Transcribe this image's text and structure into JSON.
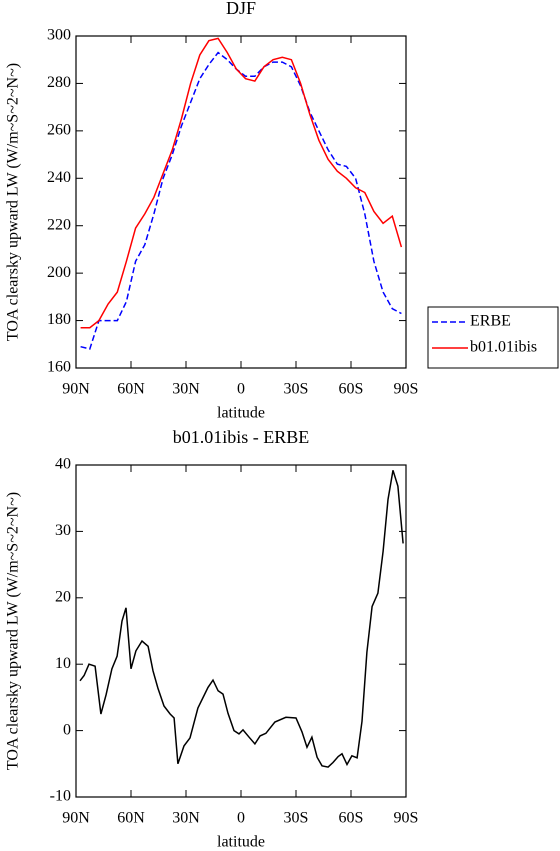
{
  "chart_data": [
    {
      "type": "line",
      "title": "DJF",
      "xlabel": "latitude",
      "ylabel": "TOA clearsky upward LW (W/m~S~2~N~)",
      "xlim": [
        90,
        -90
      ],
      "xticks": [
        {
          "value": 90,
          "label": "90N"
        },
        {
          "value": 60,
          "label": "60N"
        },
        {
          "value": 30,
          "label": "30N"
        },
        0,
        {
          "value": -30,
          "label": "30S"
        },
        {
          "value": -60,
          "label": "60S"
        },
        {
          "value": -90,
          "label": "90S"
        }
      ],
      "ylim": [
        160,
        300
      ],
      "yticks": [
        160,
        180,
        200,
        220,
        240,
        260,
        280,
        300
      ],
      "legend": "right",
      "x": [
        87.5,
        82.5,
        77.5,
        72.5,
        67.5,
        62.5,
        57.5,
        52.5,
        47.5,
        42.5,
        37.5,
        32.5,
        27.5,
        22.5,
        17.5,
        12.5,
        7.5,
        2.5,
        -2.5,
        -7.5,
        -12.5,
        -17.5,
        -22.5,
        -27.5,
        -32.5,
        -37.5,
        -42.5,
        -47.5,
        -52.5,
        -57.5,
        -62.5,
        -67.5,
        -72.5,
        -77.5,
        -82.5,
        -87.5
      ],
      "series": [
        {
          "name": "ERBE",
          "color": "#0000ff",
          "line_style": "dashed",
          "values": [
            169,
            168,
            180,
            180,
            180,
            188,
            205,
            212,
            225,
            240,
            250,
            262,
            272,
            282,
            288,
            293,
            290,
            286,
            283,
            283,
            287,
            289,
            289,
            287,
            279,
            268,
            260,
            252,
            246,
            245,
            240,
            225,
            205,
            192,
            185,
            183
          ]
        },
        {
          "name": "b01.01ibis",
          "color": "#ff0000",
          "line_style": "solid",
          "values": [
            177,
            177,
            180,
            187,
            192,
            205,
            219,
            225,
            232,
            242,
            252,
            265,
            280,
            292,
            298,
            299,
            293,
            286,
            282,
            281,
            287,
            290,
            291,
            290,
            280,
            267,
            256,
            248,
            243,
            240,
            236,
            234,
            226,
            221,
            224,
            211
          ]
        }
      ]
    },
    {
      "type": "line",
      "title": "b01.01ibis  -  ERBE",
      "xlabel": "latitude",
      "ylabel": "TOA clearsky upward LW (W/m~S~2~N~)",
      "xlim": [
        90,
        -90
      ],
      "xticks": [
        {
          "value": 90,
          "label": "90N"
        },
        {
          "value": 60,
          "label": "60N"
        },
        {
          "value": 30,
          "label": "30N"
        },
        0,
        {
          "value": -30,
          "label": "30S"
        },
        {
          "value": -60,
          "label": "60S"
        },
        {
          "value": -90,
          "label": "90S"
        }
      ],
      "ylim": [
        -10,
        40
      ],
      "yticks": [
        -10,
        0,
        10,
        20,
        30,
        40
      ],
      "x": [
        87.8,
        85.6,
        82.9,
        79.6,
        76.4,
        73.6,
        70.4,
        67.6,
        64.9,
        62.7,
        60,
        57.3,
        54,
        50.7,
        48,
        45.3,
        42,
        38.7,
        36.5,
        34.4,
        31.1,
        27.8,
        23.5,
        18,
        15.3,
        12.5,
        9.8,
        7.1,
        3.8,
        1.1,
        -1.1,
        -4.4,
        -7.6,
        -10.4,
        -13.6,
        -18.5,
        -24.5,
        -30,
        -33.3,
        -36,
        -38.7,
        -41.5,
        -44.2,
        -47.5,
        -50.2,
        -53,
        -55.1,
        -57.8,
        -60.5,
        -63.3,
        -66,
        -68.7,
        -71.5,
        -74.7,
        -77.5,
        -80.2,
        -82.9,
        -85.6,
        -88.4
      ],
      "series": [
        {
          "color": "#000000",
          "line_style": "solid",
          "values": [
            7.5,
            8.3,
            10,
            9.7,
            2.5,
            5.4,
            9.3,
            11.2,
            16.5,
            18.5,
            9.3,
            12,
            13.5,
            12.7,
            9,
            6.4,
            3.7,
            2.5,
            1.9,
            -5,
            -2.3,
            -1.1,
            3.4,
            6.5,
            7.6,
            6,
            5.5,
            2.6,
            0,
            -0.5,
            0.1,
            -1,
            -2,
            -0.8,
            -0.4,
            1.3,
            2,
            1.9,
            -0.2,
            -2.5,
            -1,
            -4,
            -5.3,
            -5.5,
            -4.8,
            -3.9,
            -3.5,
            -5.1,
            -3.8,
            -4.1,
            1.4,
            11.8,
            18.7,
            20.7,
            27,
            34.8,
            39.2,
            36.8,
            28.2
          ]
        }
      ]
    }
  ]
}
